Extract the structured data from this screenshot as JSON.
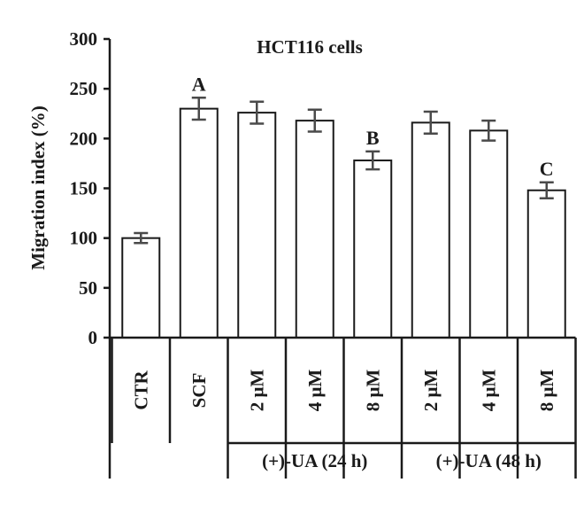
{
  "chart_data": {
    "type": "bar",
    "title": "HCT116 cells",
    "ylabel": "Migration index (%)",
    "xlabel": "",
    "ylim": [
      0,
      300
    ],
    "yticks": [
      0,
      50,
      100,
      150,
      200,
      250,
      300
    ],
    "grid": false,
    "categories": [
      "CTR",
      "SCF",
      "2 μM",
      "4 μM",
      "8 μM",
      "2 μM",
      "4 μM",
      "8 μM"
    ],
    "values": [
      100,
      230,
      226,
      218,
      178,
      216,
      208,
      148
    ],
    "errors": [
      5,
      11,
      11,
      11,
      9,
      11,
      10,
      8
    ],
    "annotations": [
      "",
      "A",
      "",
      "",
      "B",
      "",
      "",
      "C"
    ],
    "groups": [
      {
        "label": "(+)-UA (24 h)",
        "members": [
          2,
          3,
          4
        ]
      },
      {
        "label": "(+)-UA (48 h)",
        "members": [
          5,
          6,
          7
        ]
      }
    ]
  }
}
